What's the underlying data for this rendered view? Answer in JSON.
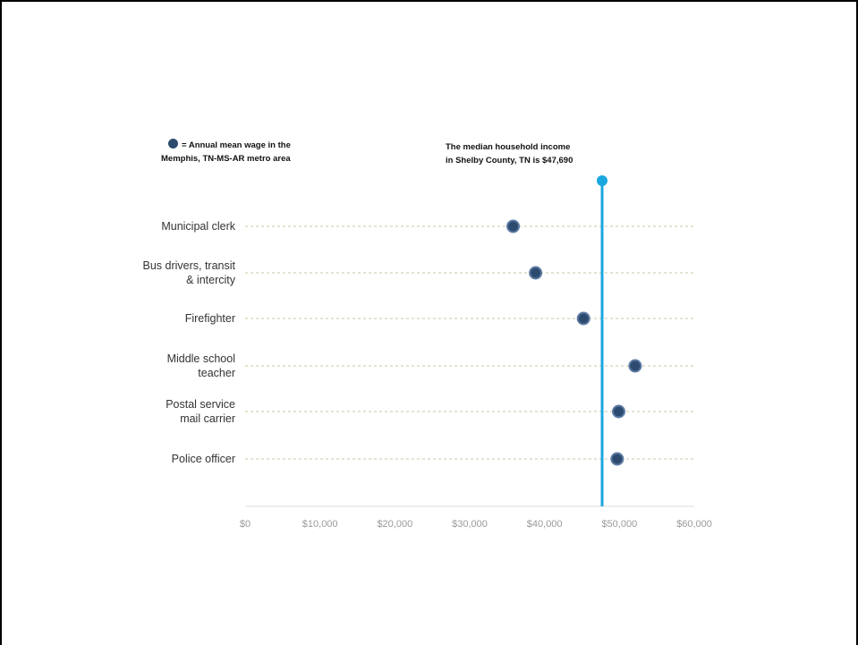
{
  "legend": {
    "marker_color": "#2d4b6e",
    "line1": "= Annual mean wage in the",
    "line2": "Memphis, TN-MS-AR metro area"
  },
  "median_annotation": {
    "line1": "The median household income",
    "line2": "in Shelby County, TN is $47,690",
    "color": "#1aa7e0"
  },
  "chart_data": {
    "type": "scatter",
    "title": "",
    "xlabel": "",
    "ylabel": "",
    "xlim": [
      0,
      60000
    ],
    "x_ticks": [
      0,
      10000,
      20000,
      30000,
      40000,
      50000,
      60000
    ],
    "x_tick_labels": [
      "$0",
      "$10,000",
      "$20,000",
      "$30,000",
      "$40,000",
      "$50,000",
      "$60,000"
    ],
    "categories": [
      [
        "Municipal clerk"
      ],
      [
        "Bus drivers, transit",
        "& intercity"
      ],
      [
        "Firefighter"
      ],
      [
        "Middle school",
        "teacher"
      ],
      [
        "Postal service",
        "mail carrier"
      ],
      [
        "Police officer"
      ]
    ],
    "values": [
      35800,
      38800,
      45200,
      52100,
      49900,
      49700
    ],
    "reference_line": {
      "value": 47690
    },
    "marker_color": "#2d4b6e",
    "grid": "dashed horizontal per category",
    "grid_color": "#c9c7a6"
  }
}
